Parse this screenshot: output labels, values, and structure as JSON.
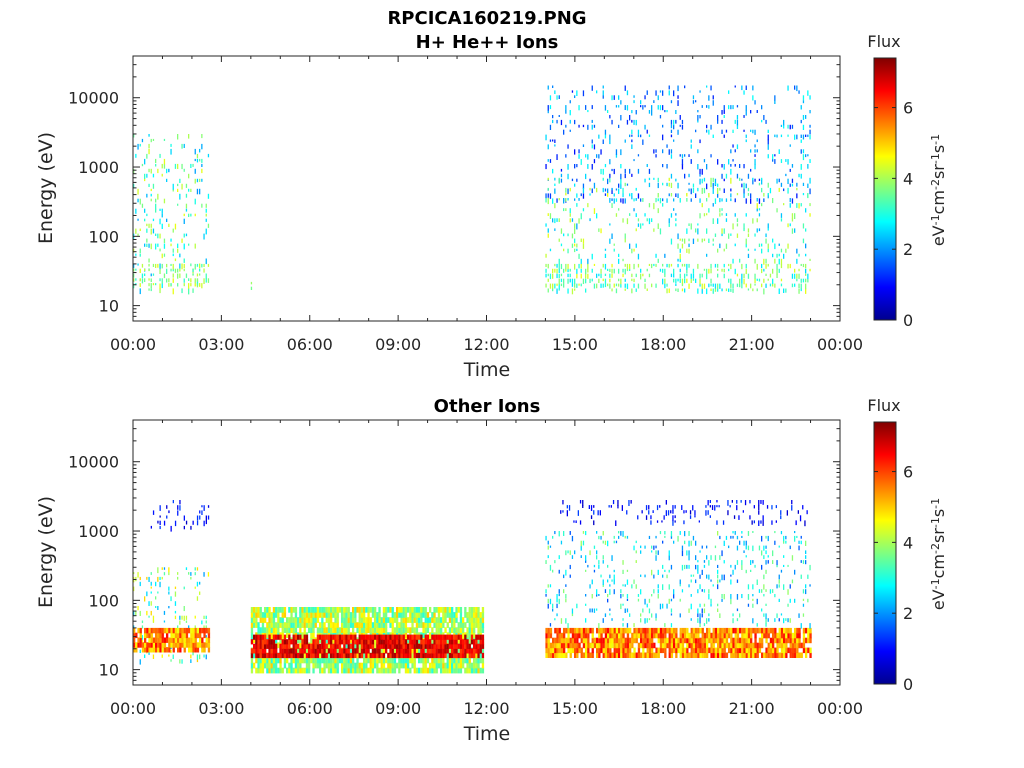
{
  "figure": {
    "title": "RPCICA160219.PNG",
    "colorbar_label": "Flux",
    "colorbar_unit_parts": [
      "eV",
      "-1",
      "cm",
      "-2",
      "sr",
      "-1",
      "s",
      "-1"
    ]
  },
  "chart_data": [
    {
      "type": "heatmap",
      "title": "H+ He++ Ions",
      "xlabel": "Time",
      "ylabel": "Energy (eV)",
      "x_tick_labels": [
        "00:00",
        "03:00",
        "06:00",
        "09:00",
        "12:00",
        "15:00",
        "18:00",
        "21:00",
        "00:00"
      ],
      "x_ticks_hours": [
        0,
        3,
        6,
        9,
        12,
        15,
        18,
        21,
        24
      ],
      "xlim_hours": [
        0,
        24
      ],
      "y_scale": "log",
      "y_tick_labels": [
        "10",
        "100",
        "1000",
        "10000"
      ],
      "y_ticks": [
        10,
        100,
        1000,
        10000
      ],
      "ylim": [
        6,
        40000
      ],
      "colorbar": {
        "label": "Flux",
        "ticks": [
          0,
          2,
          4,
          6
        ],
        "tick_labels": [
          "0",
          "2",
          "4",
          "6"
        ],
        "range": [
          0,
          7.4
        ],
        "colormap": "jet"
      },
      "data_blocks": [
        {
          "time_hours": [
            0.0,
            2.6
          ],
          "energy_eV": [
            15,
            3000
          ],
          "flux_range": [
            2,
            4.5
          ],
          "density": "sparse"
        },
        {
          "time_hours": [
            0.0,
            2.6
          ],
          "energy_eV": [
            18,
            40
          ],
          "flux_range": [
            3,
            4.5
          ],
          "density": "moderate"
        },
        {
          "time_hours": [
            4.0,
            4.05
          ],
          "energy_eV": [
            16,
            22
          ],
          "flux_range": [
            3.5,
            4
          ],
          "density": "single"
        },
        {
          "time_hours": [
            14.0,
            23.0
          ],
          "energy_eV": [
            300,
            15000
          ],
          "flux_range": [
            1,
            3
          ],
          "density": "sparse"
        },
        {
          "time_hours": [
            14.0,
            23.0
          ],
          "energy_eV": [
            40,
            700
          ],
          "flux_range": [
            2,
            4.5
          ],
          "density": "sparse"
        },
        {
          "time_hours": [
            14.0,
            23.0
          ],
          "energy_eV": [
            15,
            40
          ],
          "flux_range": [
            2.5,
            4.5
          ],
          "density": "moderate"
        }
      ]
    },
    {
      "type": "heatmap",
      "title": "Other Ions",
      "xlabel": "Time",
      "ylabel": "Energy (eV)",
      "x_tick_labels": [
        "00:00",
        "03:00",
        "06:00",
        "09:00",
        "12:00",
        "15:00",
        "18:00",
        "21:00",
        "00:00"
      ],
      "x_ticks_hours": [
        0,
        3,
        6,
        9,
        12,
        15,
        18,
        21,
        24
      ],
      "xlim_hours": [
        0,
        24
      ],
      "y_scale": "log",
      "y_tick_labels": [
        "10",
        "100",
        "1000",
        "10000"
      ],
      "y_ticks": [
        10,
        100,
        1000,
        10000
      ],
      "ylim": [
        6,
        40000
      ],
      "colorbar": {
        "label": "Flux",
        "ticks": [
          0,
          2,
          4,
          6
        ],
        "tick_labels": [
          "0",
          "2",
          "4",
          "6"
        ],
        "range": [
          0,
          7.4
        ],
        "colormap": "jet"
      },
      "data_blocks": [
        {
          "time_hours": [
            0.0,
            2.6
          ],
          "energy_eV": [
            12,
            300
          ],
          "flux_range": [
            2,
            5
          ],
          "density": "sparse"
        },
        {
          "time_hours": [
            0.0,
            2.6
          ],
          "energy_eV": [
            18,
            40
          ],
          "flux_range": [
            4.5,
            6.5
          ],
          "density": "dense"
        },
        {
          "time_hours": [
            0.6,
            2.6
          ],
          "energy_eV": [
            1000,
            2800
          ],
          "flux_range": [
            0.5,
            1.5
          ],
          "density": "sparse"
        },
        {
          "time_hours": [
            4.0,
            11.9
          ],
          "energy_eV": [
            9,
            80
          ],
          "flux_range": [
            3,
            5
          ],
          "density": "dense"
        },
        {
          "time_hours": [
            4.0,
            11.9
          ],
          "energy_eV": [
            15,
            32
          ],
          "flux_range": [
            6,
            7.2
          ],
          "density": "dense"
        },
        {
          "time_hours": [
            14.0,
            23.0
          ],
          "energy_eV": [
            15,
            40
          ],
          "flux_range": [
            4.5,
            6.5
          ],
          "density": "dense"
        },
        {
          "time_hours": [
            14.0,
            23.0
          ],
          "energy_eV": [
            40,
            1000
          ],
          "flux_range": [
            1.5,
            4
          ],
          "density": "sparse"
        },
        {
          "time_hours": [
            14.5,
            23.0
          ],
          "energy_eV": [
            1200,
            2800
          ],
          "flux_range": [
            0.5,
            1.5
          ],
          "density": "sparse"
        }
      ]
    }
  ]
}
